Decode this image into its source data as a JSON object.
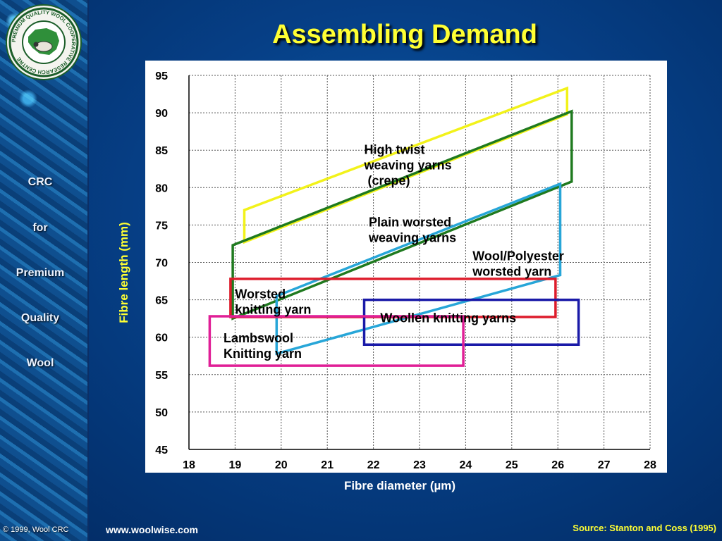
{
  "slide": {
    "title": "Assembling Demand",
    "url": "www.woolwise.com",
    "source": "Source: Stanton and Coss (1995)",
    "copyright": "© 1999, Wool CRC"
  },
  "sidebar": {
    "logo_ring_text": "PREMIUM QUALITY WOOL COOPERATIVE RESEARCH CENTRE",
    "lines": [
      "CRC",
      "for",
      "Premium",
      "Quality",
      "Wool"
    ]
  },
  "chart_data": {
    "type": "region",
    "xlabel": "Fibre diameter (µm)",
    "ylabel": "Fibre length (mm)",
    "xlim": [
      18,
      28
    ],
    "ylim": [
      45,
      95
    ],
    "xticks": [
      18,
      19,
      20,
      21,
      22,
      23,
      24,
      25,
      26,
      27,
      28
    ],
    "yticks": [
      45,
      50,
      55,
      60,
      65,
      70,
      75,
      80,
      85,
      90,
      95
    ],
    "grid": true,
    "regions": [
      {
        "name": "High twist weaving yarns (crepe)",
        "label_lines": [
          "High twist",
          "weaving yarns",
          " (crepe)"
        ],
        "label_at": [
          21.8,
          84.5
        ],
        "color": "#f2f21a",
        "points": [
          [
            19.2,
            72.7
          ],
          [
            26.2,
            89.8
          ],
          [
            26.2,
            93.3
          ],
          [
            19.2,
            77.0
          ]
        ]
      },
      {
        "name": "Plain worsted weaving yarns",
        "label_lines": [
          "Plain worsted",
          "weaving yarns"
        ],
        "label_at": [
          21.9,
          74.8
        ],
        "color": "#1f7a1f",
        "points": [
          [
            18.95,
            62.5
          ],
          [
            26.3,
            80.8
          ],
          [
            26.3,
            90.2
          ],
          [
            18.95,
            72.3
          ]
        ]
      },
      {
        "name": "Wool/Polyester worsted yarn",
        "label_lines": [
          "Wool/Polyester",
          "worsted  yarn"
        ],
        "label_at": [
          24.15,
          70.3
        ],
        "color": "#27a6d8",
        "points": [
          [
            19.9,
            57.8
          ],
          [
            26.05,
            68.3
          ],
          [
            26.05,
            80.5
          ],
          [
            19.9,
            65.5
          ]
        ]
      },
      {
        "name": "Worsted knitting yarn",
        "label_lines": [
          "Worsted",
          "knitting yarn"
        ],
        "label_at": [
          19.0,
          65.2
        ],
        "color": "#dd1c2b",
        "points": [
          [
            18.9,
            62.7
          ],
          [
            25.95,
            62.7
          ],
          [
            25.95,
            67.8
          ],
          [
            18.9,
            67.8
          ]
        ]
      },
      {
        "name": "Woollen knitting yarns",
        "label_lines": [
          "Woollen knitting yarns"
        ],
        "label_at": [
          22.15,
          62.0
        ],
        "color": "#1a1aa8",
        "points": [
          [
            21.8,
            59.0
          ],
          [
            26.45,
            59.0
          ],
          [
            26.45,
            65.0
          ],
          [
            21.8,
            65.0
          ]
        ]
      },
      {
        "name": "Lambswool Knitting yarn",
        "label_lines": [
          "Lambswool",
          "Knitting yarn"
        ],
        "label_at": [
          18.75,
          59.3
        ],
        "color": "#e01f96",
        "points": [
          [
            18.45,
            56.2
          ],
          [
            23.95,
            56.2
          ],
          [
            23.95,
            62.8
          ],
          [
            18.45,
            62.8
          ]
        ]
      }
    ]
  }
}
